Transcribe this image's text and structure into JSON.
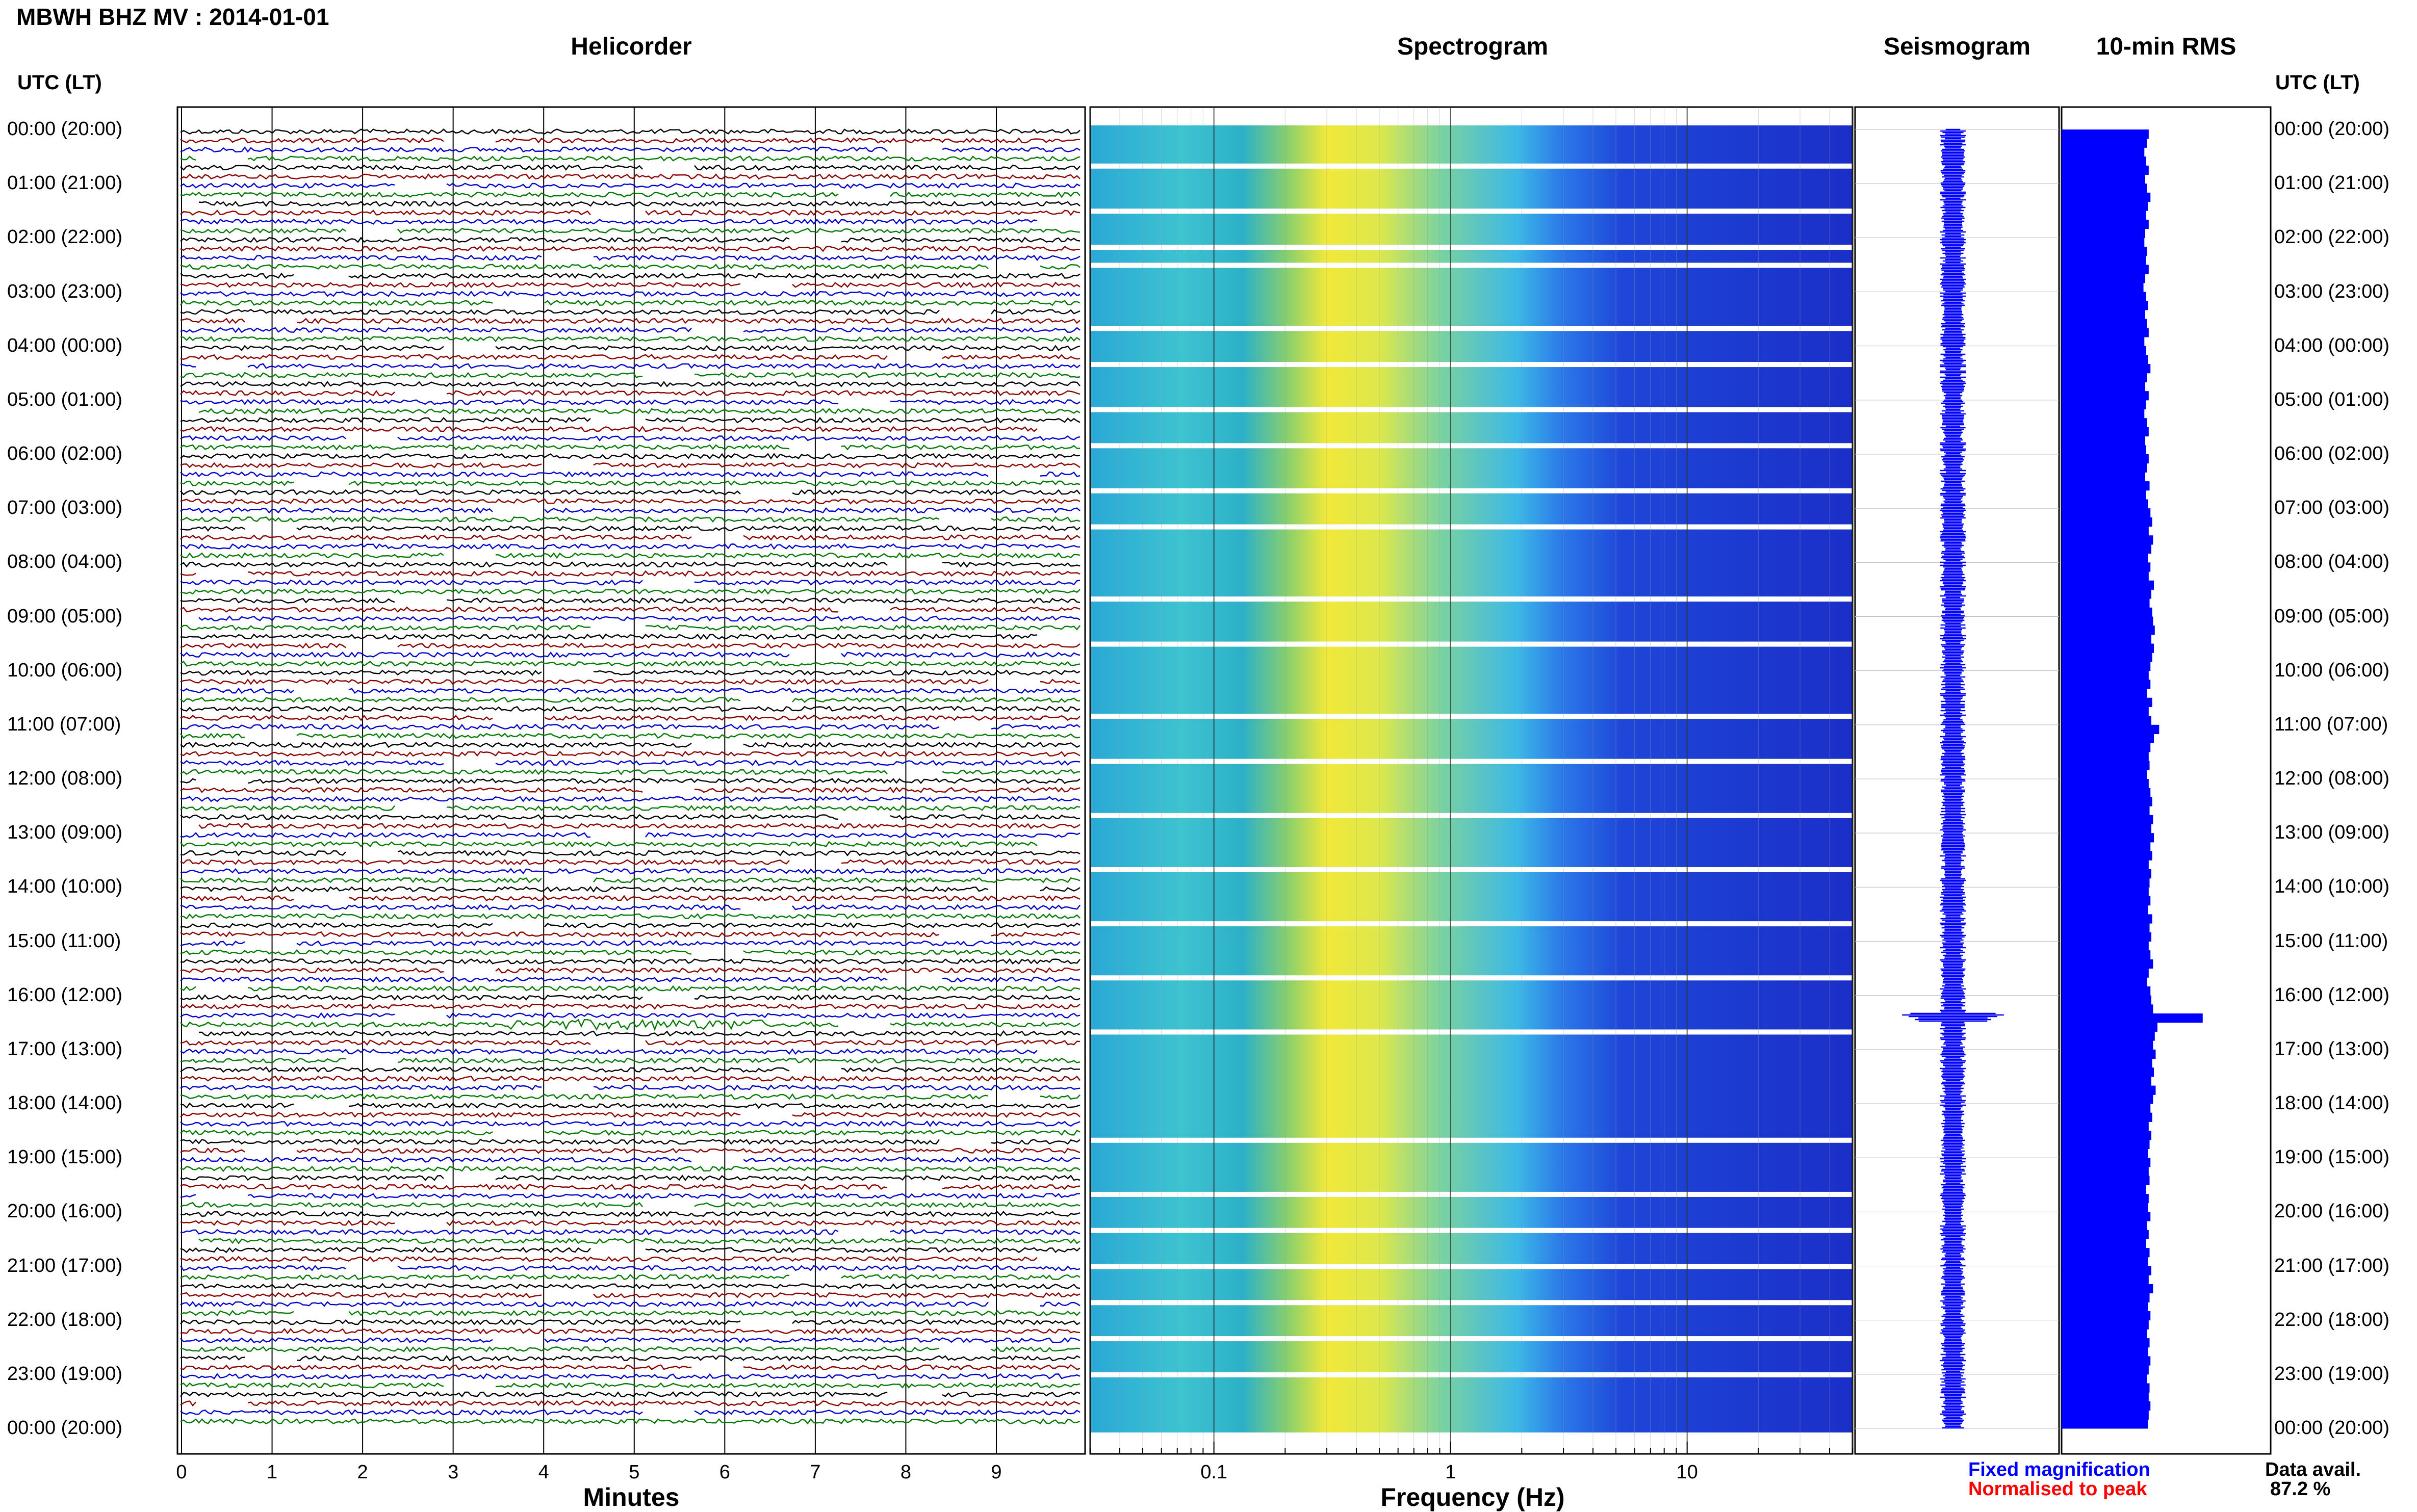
{
  "header": {
    "title": "MBWH BHZ MV : 2014-01-01",
    "utc_lt_label": "UTC (LT)"
  },
  "panels": {
    "helicorder": "Helicorder",
    "spectrogram": "Spectrogram",
    "seismogram": "Seismogram",
    "rms": "10-min RMS"
  },
  "time_labels": [
    "00:00 (20:00)",
    "01:00 (21:00)",
    "02:00 (22:00)",
    "03:00 (23:00)",
    "04:00 (00:00)",
    "05:00 (01:00)",
    "06:00 (02:00)",
    "07:00 (03:00)",
    "08:00 (04:00)",
    "09:00 (05:00)",
    "10:00 (06:00)",
    "11:00 (07:00)",
    "12:00 (08:00)",
    "13:00 (09:00)",
    "14:00 (10:00)",
    "15:00 (11:00)",
    "16:00 (12:00)",
    "17:00 (13:00)",
    "18:00 (14:00)",
    "19:00 (15:00)",
    "20:00 (16:00)",
    "21:00 (17:00)",
    "22:00 (18:00)",
    "23:00 (19:00)",
    "00:00 (20:00)"
  ],
  "footer": {
    "minutes_label": "Minutes",
    "frequency_label": "Frequency (Hz)",
    "fixed_magnification": "Fixed magnification",
    "normalised_to_peak": "Normalised to peak",
    "data_avail_label": "Data avail.",
    "data_avail_value": "87.2 %"
  },
  "colors": {
    "trace_cycle": [
      "#000000",
      "#8b0000",
      "#0000cd",
      "#007a00"
    ],
    "fixed_magnification": "#0000ff",
    "normalised_to_peak": "#ff0000",
    "rms_fill": "#0000ff"
  },
  "chart_data": [
    {
      "type": "line",
      "panel": "helicorder",
      "xlabel": "Minutes",
      "x_ticks": [
        0,
        1,
        2,
        3,
        4,
        5,
        6,
        7,
        8,
        9
      ],
      "xlim": [
        0,
        10
      ],
      "rows_per_hour": 6,
      "hours": 24
    },
    {
      "type": "heatmap",
      "panel": "spectrogram",
      "xlabel": "Frequency (Hz)",
      "x_scale": "log",
      "x_ticks": [
        0.1,
        1,
        10
      ],
      "x_tick_labels": [
        "0.1",
        "1",
        "10"
      ],
      "xlim": [
        0.03,
        50
      ]
    },
    {
      "type": "line",
      "panel": "seismogram",
      "event_hour": 16.4
    },
    {
      "type": "bar",
      "panel": "rms",
      "orientation": "horizontal",
      "interval_minutes": 10,
      "peak_hour": 16.4,
      "values": [
        1.0,
        0.98,
        0.95,
        0.97,
        1.0,
        0.96,
        0.98,
        1.02,
        0.99,
        0.97,
        1.0,
        0.96,
        0.95,
        0.98,
        0.97,
        1.0,
        0.96,
        0.94,
        0.97,
        0.99,
        0.96,
        0.98,
        1.0,
        0.95,
        0.97,
        0.99,
        1.02,
        0.98,
        0.96,
        1.0,
        0.97,
        0.95,
        0.98,
        1.0,
        0.96,
        0.97,
        1.0,
        0.98,
        0.96,
        1.01,
        0.97,
        0.99,
        1.02,
        1.04,
        1.0,
        1.05,
        1.03,
        0.99,
        1.02,
        1.0,
        1.06,
        1.03,
        1.01,
        1.04,
        1.05,
        1.07,
        1.03,
        1.06,
        1.04,
        1.02,
        1.0,
        1.02,
        0.98,
        1.04,
        1.0,
        1.03,
        1.12,
        1.06,
        1.02,
        1.0,
        1.01,
        0.98,
        1.0,
        1.02,
        1.04,
        1.01,
        1.05,
        1.03,
        1.06,
        1.02,
        1.04,
        1.0,
        1.03,
        1.01,
        1.0,
        1.02,
        0.99,
        1.04,
        1.01,
        1.03,
        1.0,
        1.02,
        1.05,
        1.0,
        0.98,
        1.02,
        1.03,
        1.05,
        1.62,
        1.1,
        1.07,
        1.05,
        1.08,
        1.04,
        1.06,
        1.03,
        1.08,
        1.05,
        1.02,
        1.04,
        1.0,
        1.03,
        1.01,
        0.99,
        1.02,
        1.0,
        1.01,
        0.97,
        1.0,
        0.99,
        1.02,
        0.98,
        1.0,
        0.97,
        1.01,
        0.99,
        1.03,
        1.0,
        1.05,
        1.01,
        0.99,
        1.02,
        1.0,
        0.98,
        1.01,
        0.99,
        1.02,
        1.0,
        0.98,
        1.01,
        1.0,
        1.02,
        1.0,
        0.99
      ]
    }
  ]
}
